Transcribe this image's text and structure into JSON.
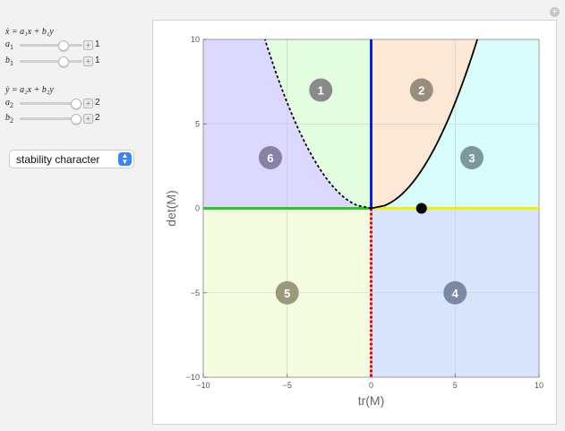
{
  "controls": {
    "eq1": "ẋ = a₁x + b₁y",
    "eq2": "ẏ = a₂x + b₂y",
    "sliders": [
      {
        "name": "a",
        "sub": "1",
        "value": "1",
        "fraction": 0.68
      },
      {
        "name": "b",
        "sub": "1",
        "value": "1",
        "fraction": 0.68
      },
      {
        "name": "a",
        "sub": "2",
        "value": "2",
        "fraction": 0.89
      },
      {
        "name": "b",
        "sub": "2",
        "value": "2",
        "fraction": 0.89
      }
    ],
    "dropdown": {
      "selected": "stability character"
    }
  },
  "chart_data": {
    "type": "region-plot",
    "xlabel": "tr(M)",
    "ylabel": "det(M)",
    "xlim": [
      -10,
      10
    ],
    "ylim": [
      -10,
      10
    ],
    "xticks": [
      "−10",
      "−5",
      "0",
      "5",
      "10"
    ],
    "yticks": [
      "−10",
      "−5",
      "0",
      "5",
      "10"
    ],
    "grid": true,
    "regions": [
      {
        "label": "1",
        "x": -3,
        "y": 7,
        "badge_color": "#8a8a8a"
      },
      {
        "label": "2",
        "x": 3,
        "y": 7,
        "badge_color": "#998d7e"
      },
      {
        "label": "3",
        "x": 6,
        "y": 3,
        "badge_color": "#7a9a9a"
      },
      {
        "label": "4",
        "x": 5,
        "y": -5,
        "badge_color": "#7a8aa4"
      },
      {
        "label": "5",
        "x": -5,
        "y": -5,
        "badge_color": "#9a9a7a"
      },
      {
        "label": "6",
        "x": -6,
        "y": 3,
        "badge_color": "#8a80a6"
      }
    ],
    "region_colors": {
      "left_top": "#dcd8ff",
      "center_left": "#e2fde0",
      "center_right": "#fde8d6",
      "right_top": "#d8fdfc",
      "lower_left": "#f5fde0",
      "lower_right": "#d8e3fc"
    },
    "point": {
      "x": 3,
      "y": 0
    },
    "curve": "det = tr^2 / 4",
    "line_colors": {
      "positive_y_axis": "#0a1df0",
      "negative_x_axis": "#22cc22",
      "positive_x_axis": "#f0f000",
      "negative_y_axis": "#ee0000"
    }
  }
}
